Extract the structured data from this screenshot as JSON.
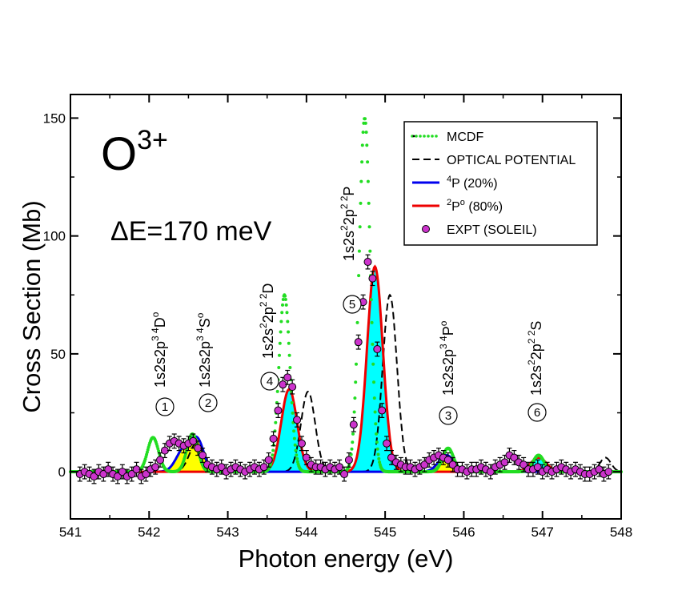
{
  "chart_data": {
    "type": "line",
    "title": "O3+",
    "ion": {
      "base": "O",
      "charge": "3+"
    },
    "delta_label": "ΔE=170 meV",
    "xlabel": "Photon energy (eV)",
    "ylabel": "Cross Section (Mb)",
    "xlim": [
      541,
      548
    ],
    "ylim": [
      -20,
      160
    ],
    "xticks": [
      "541",
      "542",
      "543",
      "544",
      "545",
      "546",
      "547",
      "548"
    ],
    "yticks": [
      "0",
      "50",
      "100",
      "150"
    ],
    "legend": [
      {
        "key": "mcdf",
        "label": "MCDF"
      },
      {
        "key": "optical",
        "label": "OPTICAL POTENTIAL"
      },
      {
        "key": "p4",
        "sup": "4",
        "label": "P  (20%)"
      },
      {
        "key": "p2",
        "sup": "2",
        "label": "P",
        "sup2": "o",
        "label2": " (80%)"
      },
      {
        "key": "expt",
        "label": "EXPT (SOLEIL)"
      }
    ],
    "colors": {
      "mcdf": "#22dd22",
      "optical": "#000000",
      "p4": "#0000ee",
      "p2": "#ee0000",
      "expt_fill": "#cc33cc",
      "fill_doublet": "#00ffff",
      "fill_quartet": "#ffff00",
      "axis": "#000000"
    },
    "peaks": [
      {
        "id": "1",
        "energy": 542.05,
        "mcdf": 14.5,
        "optical": 0,
        "p4": 0,
        "p2": 0,
        "state": "1s2s2p",
        "sup": "3 4",
        "term": "D",
        "term_sup": "o"
      },
      {
        "id": "2",
        "energy": 542.4,
        "mcdf": 16,
        "optical": 12,
        "p4": 12,
        "p2": 0,
        "state": "1s2s2p",
        "sup": "3 4",
        "term": "S",
        "term_sup": "o"
      },
      {
        "id": "4",
        "energy": 543.72,
        "mcdf": 75,
        "optical": 34,
        "p4": 0,
        "p2": 35,
        "state": "1s2s",
        "sup": "2",
        "state2": "2p",
        "sup2": "2 2",
        "term": "D",
        "term_sup": ""
      },
      {
        "id": "5",
        "energy": 544.72,
        "mcdf": 150,
        "optical": 75,
        "p4": 0,
        "p2": 87,
        "state": "1s2s",
        "sup": "2",
        "state2": "2p",
        "sup2": "2 2",
        "term": "P",
        "term_sup": ""
      },
      {
        "id": "3",
        "energy": 545.78,
        "mcdf": 10,
        "optical": 6,
        "p4": 7,
        "p2": 0,
        "state": "1s2s2p",
        "sup": "3 4",
        "term": "P",
        "term_sup": "o"
      },
      {
        "id": "6",
        "energy": 546.95,
        "mcdf": 7,
        "optical": 6,
        "p4": 0,
        "p2": 6,
        "state": "1s2s",
        "sup": "2",
        "state2": "2p",
        "sup2": "2 2",
        "term": "S",
        "term_sup": ""
      }
    ],
    "theory_peaks": {
      "mcdf": [
        {
          "x": 542.05,
          "y": 14.5,
          "w": 0.07
        },
        {
          "x": 542.55,
          "y": 16,
          "w": 0.07
        },
        {
          "x": 543.72,
          "y": 75,
          "w": 0.07
        },
        {
          "x": 544.74,
          "y": 150,
          "w": 0.07
        },
        {
          "x": 545.8,
          "y": 10,
          "w": 0.07
        },
        {
          "x": 546.95,
          "y": 7,
          "w": 0.07
        }
      ],
      "optical": [
        {
          "x": 542.6,
          "y": 12,
          "w": 0.09
        },
        {
          "x": 544.02,
          "y": 34,
          "w": 0.09
        },
        {
          "x": 545.06,
          "y": 75,
          "w": 0.09
        },
        {
          "x": 545.8,
          "y": 6,
          "w": 0.09
        },
        {
          "x": 546.95,
          "y": 6,
          "w": 0.09
        },
        {
          "x": 547.8,
          "y": 6,
          "w": 0.07
        }
      ],
      "p4": [
        {
          "x": 542.45,
          "y": 10,
          "w": 0.1
        },
        {
          "x": 542.62,
          "y": 12,
          "w": 0.08
        },
        {
          "x": 545.78,
          "y": 7,
          "w": 0.1
        }
      ],
      "p2": [
        {
          "x": 543.78,
          "y": 35,
          "w": 0.1
        },
        {
          "x": 544.87,
          "y": 87,
          "w": 0.1
        },
        {
          "x": 546.95,
          "y": 6,
          "w": 0.1
        }
      ]
    },
    "expt": {
      "x": [
        541.12,
        541.18,
        541.24,
        541.3,
        541.36,
        541.42,
        541.48,
        541.54,
        541.6,
        541.66,
        541.72,
        541.78,
        541.84,
        541.9,
        541.96,
        542.02,
        542.08,
        542.14,
        542.2,
        542.26,
        542.32,
        542.38,
        542.44,
        542.5,
        542.56,
        542.62,
        542.68,
        542.74,
        542.8,
        542.86,
        542.92,
        542.98,
        543.04,
        543.1,
        543.16,
        543.22,
        543.28,
        543.34,
        543.4,
        543.46,
        543.52,
        543.58,
        543.64,
        543.7,
        543.76,
        543.82,
        543.88,
        543.94,
        544.0,
        544.06,
        544.12,
        544.18,
        544.24,
        544.3,
        544.36,
        544.42,
        544.48,
        544.54,
        544.6,
        544.66,
        544.72,
        544.78,
        544.84,
        544.9,
        544.96,
        545.02,
        545.08,
        545.14,
        545.2,
        545.26,
        545.32,
        545.38,
        545.44,
        545.5,
        545.56,
        545.62,
        545.68,
        545.74,
        545.8,
        545.86,
        545.92,
        545.98,
        546.04,
        546.1,
        546.16,
        546.22,
        546.28,
        546.34,
        546.4,
        546.46,
        546.52,
        546.58,
        546.64,
        546.7,
        546.76,
        546.82,
        546.88,
        546.94,
        547.0,
        547.06,
        547.12,
        547.18,
        547.24,
        547.3,
        547.36,
        547.42,
        547.48,
        547.54,
        547.6,
        547.66,
        547.72,
        547.78,
        547.84
      ],
      "y": [
        -1,
        0,
        -1,
        -2,
        0,
        -1,
        1,
        -1,
        -2,
        0,
        -2,
        -1,
        1,
        -2,
        -1,
        1,
        2,
        5,
        9,
        12,
        13,
        12,
        11,
        12,
        13,
        10,
        7,
        3,
        2,
        1,
        2,
        0,
        1,
        2,
        1,
        0,
        1,
        2,
        1,
        2,
        5,
        14,
        26,
        37,
        40,
        36,
        22,
        12,
        6,
        3,
        2,
        2,
        1,
        2,
        1,
        2,
        -1,
        5,
        20,
        55,
        72,
        89,
        82,
        52,
        26,
        12,
        6,
        4,
        3,
        2,
        2,
        1,
        2,
        3,
        5,
        6,
        7,
        6,
        5,
        3,
        1,
        1,
        0,
        1,
        1,
        2,
        1,
        0,
        2,
        3,
        4,
        7,
        6,
        4,
        3,
        1,
        1,
        2,
        0,
        1,
        0,
        1,
        2,
        1,
        0,
        1,
        0,
        -1,
        -1,
        0,
        1,
        -1,
        0
      ],
      "err": 3
    }
  }
}
